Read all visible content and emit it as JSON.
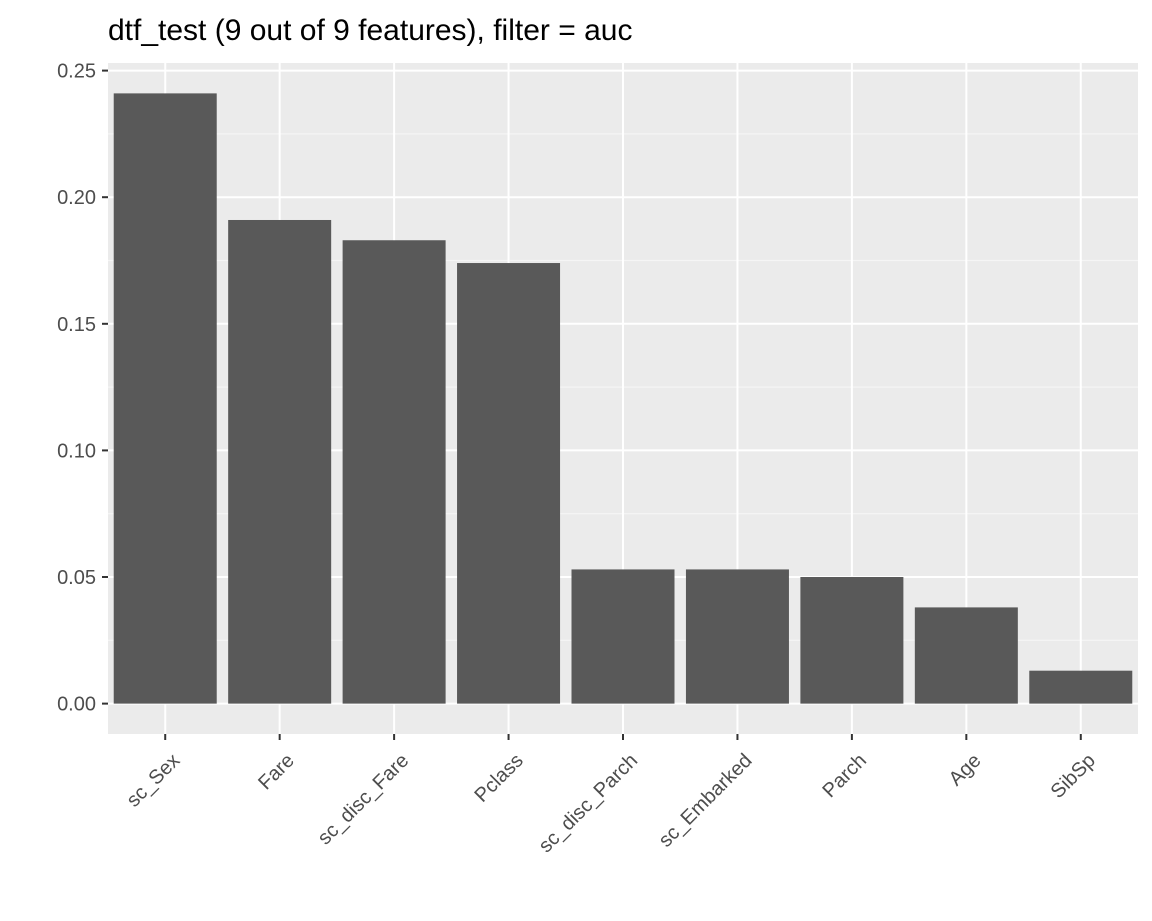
{
  "chart_data": {
    "type": "bar",
    "title": "dtf_test (9 out of 9 features), filter = auc",
    "xlabel": "",
    "ylabel": "",
    "categories": [
      "sc_Sex",
      "Fare",
      "sc_disc_Fare",
      "Pclass",
      "sc_disc_Parch",
      "sc_Embarked",
      "Parch",
      "Age",
      "SibSp"
    ],
    "values": [
      0.241,
      0.191,
      0.183,
      0.174,
      0.053,
      0.053,
      0.05,
      0.038,
      0.013
    ],
    "ylim": [
      -0.012,
      0.253
    ],
    "yticks": [
      "0.00",
      "0.05",
      "0.10",
      "0.15",
      "0.20",
      "0.25"
    ],
    "grid": true,
    "colors": {
      "bar": "#595959",
      "panel": "#ebebeb",
      "grid_major": "#ffffff",
      "grid_minor": "#f5f5f5",
      "tick": "#333333"
    }
  }
}
